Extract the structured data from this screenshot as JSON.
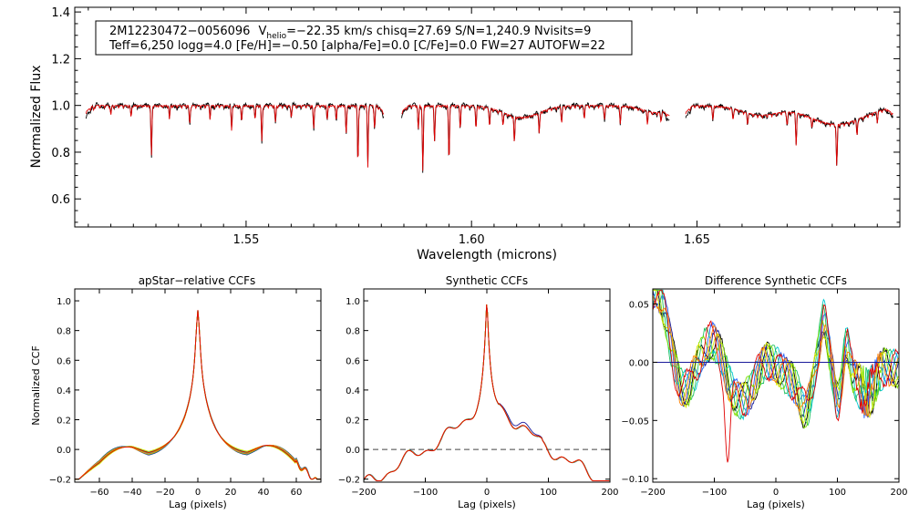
{
  "chart_data": [
    {
      "type": "line",
      "id": "spectrum",
      "xlabel": "Wavelength (microns)",
      "ylabel": "Normalized Flux",
      "xlim": [
        1.512,
        1.695
      ],
      "ylim": [
        0.48,
        1.42
      ],
      "xticks": [
        "1.55",
        "1.60",
        "1.65"
      ],
      "yticks": [
        "0.6",
        "0.8",
        "1.0",
        "1.2",
        "1.4"
      ],
      "info_line1": {
        "name": "2M12230472−0056096",
        "v": "V",
        "sub": "helio",
        "rest": "=−22.35 km/s  chisq=27.69  S/N=1,240.9  Nvisits=9"
      },
      "info_line2": "Teff=6,250 logg=4.0 [Fe/H]=−0.50 [alpha/Fe]=0.0 [C/Fe]=0.0 FW=27 AUTOFW=22",
      "chips": [
        [
          1.5145,
          1.5805
        ],
        [
          1.5845,
          1.644
        ],
        [
          1.6475,
          1.6935
        ]
      ],
      "series": [
        {
          "name": "observed",
          "color": "#000000"
        },
        {
          "name": "model",
          "color": "#e00000"
        }
      ],
      "lines": [
        [
          1.5162,
          0.02
        ],
        [
          1.52,
          0.04
        ],
        [
          1.5245,
          0.05
        ],
        [
          1.529,
          0.21
        ],
        [
          1.533,
          0.06
        ],
        [
          1.5375,
          0.08
        ],
        [
          1.542,
          0.05
        ],
        [
          1.5468,
          0.11
        ],
        [
          1.549,
          0.07
        ],
        [
          1.552,
          0.06
        ],
        [
          1.5535,
          0.15
        ],
        [
          1.5565,
          0.07
        ],
        [
          1.56,
          0.05
        ],
        [
          1.565,
          0.1
        ],
        [
          1.568,
          0.06
        ],
        [
          1.57,
          0.06
        ],
        [
          1.5722,
          0.12
        ],
        [
          1.5748,
          0.25
        ],
        [
          1.577,
          0.27
        ],
        [
          1.5785,
          0.1
        ],
        [
          1.5882,
          0.1
        ],
        [
          1.5892,
          0.28
        ],
        [
          1.5918,
          0.15
        ],
        [
          1.595,
          0.24
        ],
        [
          1.5975,
          0.09
        ],
        [
          1.601,
          0.1
        ],
        [
          1.604,
          0.08
        ],
        [
          1.607,
          0.05
        ],
        [
          1.6095,
          0.11
        ],
        [
          1.615,
          0.09
        ],
        [
          1.62,
          0.07
        ],
        [
          1.625,
          0.05
        ],
        [
          1.6295,
          0.06
        ],
        [
          1.633,
          0.08
        ],
        [
          1.639,
          0.05
        ],
        [
          1.642,
          0.04
        ],
        [
          1.6535,
          0.06
        ],
        [
          1.658,
          0.05
        ],
        [
          1.6612,
          0.05
        ],
        [
          1.67,
          0.06
        ],
        [
          1.672,
          0.14
        ],
        [
          1.6755,
          0.04
        ],
        [
          1.681,
          0.18
        ],
        [
          1.6855,
          0.07
        ],
        [
          1.69,
          0.04
        ]
      ],
      "broad_features": [
        [
          1.611,
          0.05,
          0.004
        ],
        [
          1.681,
          0.08,
          0.006
        ],
        [
          1.641,
          0.03,
          0.003
        ],
        [
          1.664,
          0.04,
          0.004
        ]
      ]
    },
    {
      "type": "line",
      "id": "apstar_ccf",
      "title": "apStar−relative CCFs",
      "xlabel": "Lag (pixels)",
      "ylabel": "Normalized CCF",
      "xlim": [
        -75,
        75
      ],
      "ylim": [
        -0.22,
        1.08
      ],
      "xticks": [
        "−60",
        "−40",
        "−20",
        "0",
        "20",
        "40",
        "60"
      ],
      "xtick_values": [
        -60,
        -40,
        -20,
        0,
        20,
        40,
        60
      ],
      "yticks": [
        "−0.2",
        "0.0",
        "0.2",
        "0.4",
        "0.6",
        "0.8",
        "1.0"
      ],
      "ytick_values": [
        -0.2,
        0,
        0.2,
        0.4,
        0.6,
        0.8,
        1.0
      ],
      "n_visits": 9
    },
    {
      "type": "line",
      "id": "synthetic_ccf",
      "title": "Synthetic CCFs",
      "xlabel": "Lag (pixels)",
      "ylabel": "",
      "xlim": [
        -200,
        200
      ],
      "ylim": [
        -0.22,
        1.08
      ],
      "xticks": [
        "−200",
        "−100",
        "0",
        "100",
        "200"
      ],
      "xtick_values": [
        -200,
        -100,
        0,
        100,
        200
      ],
      "yticks": [
        "−0.2",
        "0.0",
        "0.2",
        "0.4",
        "0.6",
        "0.8",
        "1.0"
      ],
      "ytick_values": [
        -0.2,
        0,
        0.2,
        0.4,
        0.6,
        0.8,
        1.0
      ],
      "reference_line": 0.0
    },
    {
      "type": "line",
      "id": "diff_ccf",
      "title": "Difference Synthetic CCFs",
      "xlabel": "Lag (pixels)",
      "ylabel": "",
      "xlim": [
        -200,
        200
      ],
      "ylim": [
        -0.103,
        0.063
      ],
      "xticks": [
        "−200",
        "−100",
        "0",
        "100",
        "200"
      ],
      "xtick_values": [
        -200,
        -100,
        0,
        100,
        200
      ],
      "yticks": [
        "−0.10",
        "−0.05",
        "0.00",
        "0.05"
      ],
      "ytick_values": [
        -0.1,
        -0.05,
        0.0,
        0.05
      ],
      "reference_line": 0.0
    }
  ],
  "visit_colors": [
    "#000000",
    "#1a1a9a",
    "#2060ff",
    "#00c8d0",
    "#20c060",
    "#80e000",
    "#d8e800",
    "#ff8000",
    "#e00000"
  ]
}
